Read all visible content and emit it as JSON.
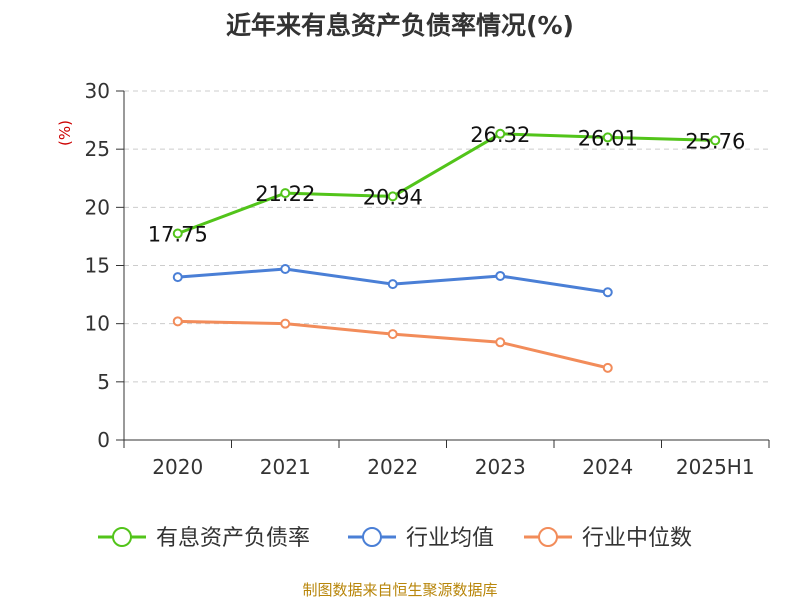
{
  "title": "近年来有息资产负债率情况(%)",
  "source": "制图数据来自恒生聚源数据库",
  "colors": {
    "series_1": "#52c41a",
    "series_2": "#4a7fd6",
    "series_3": "#f28c5a",
    "grid": "#cccccc",
    "axis": "#333333",
    "ylabel": "#cc0000",
    "source": "#b8860b"
  },
  "chart_data": {
    "type": "line",
    "ylabel": "(%)",
    "xlabel": "",
    "ylim": [
      0,
      30
    ],
    "yticks": [
      0,
      5,
      10,
      15,
      20,
      25,
      30
    ],
    "grid": true,
    "legend_position": "bottom",
    "categories": [
      "2020",
      "2021",
      "2022",
      "2023",
      "2024",
      "2025H1"
    ],
    "series": [
      {
        "name": "有息资产负债率",
        "values": [
          17.75,
          21.22,
          20.94,
          26.32,
          26.01,
          25.76
        ],
        "labels": [
          "17.75",
          "21.22",
          "20.94",
          "26.32",
          "26.01",
          "25.76"
        ],
        "color": "#52c41a"
      },
      {
        "name": "行业均值",
        "values": [
          14.0,
          14.7,
          13.4,
          14.1,
          12.7,
          null
        ],
        "color": "#4a7fd6"
      },
      {
        "name": "行业中位数",
        "values": [
          10.2,
          10.0,
          9.1,
          8.4,
          6.2,
          null
        ],
        "color": "#f28c5a"
      }
    ]
  }
}
